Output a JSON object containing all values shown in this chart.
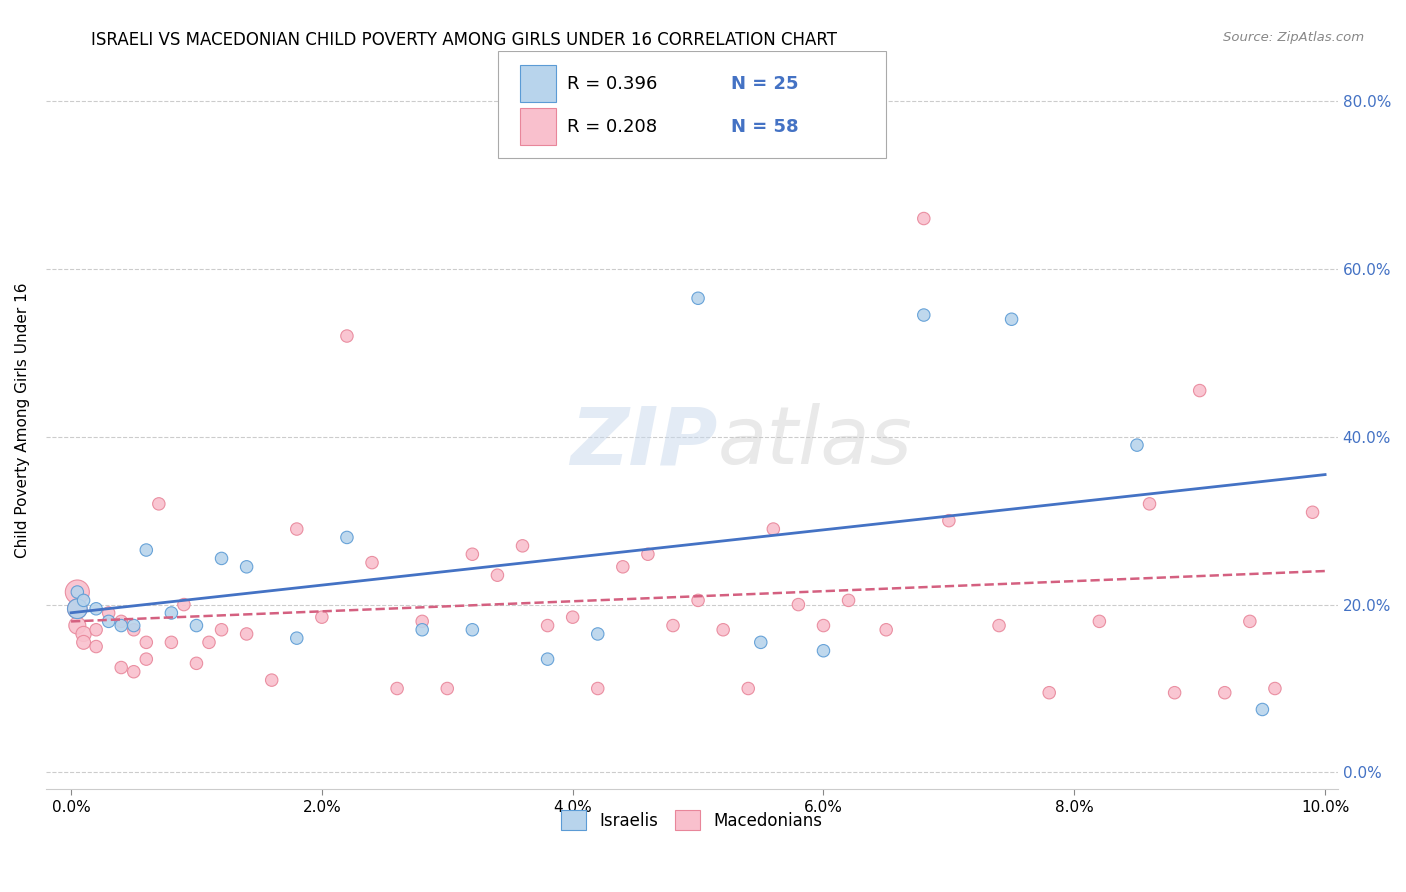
{
  "title": "ISRAELI VS MACEDONIAN CHILD POVERTY AMONG GIRLS UNDER 16 CORRELATION CHART",
  "source": "Source: ZipAtlas.com",
  "ylabel": "Child Poverty Among Girls Under 16",
  "xlim": [
    -0.002,
    0.101
  ],
  "ylim": [
    -0.02,
    0.86
  ],
  "xticks": [
    0.0,
    0.02,
    0.04,
    0.06,
    0.08,
    0.1
  ],
  "yticks": [
    0.0,
    0.2,
    0.4,
    0.6,
    0.8
  ],
  "israeli_fill": "#b8d4ec",
  "macedonian_fill": "#f9c0cd",
  "israeli_edge": "#5b9bd5",
  "macedonian_edge": "#e8869a",
  "israeli_line_color": "#4472c4",
  "macedonian_line_color": "#d46080",
  "legend_label_israeli": "Israelis",
  "legend_label_macedonian": "Macedonians",
  "R_israeli": 0.396,
  "N_israeli": 25,
  "R_macedonian": 0.208,
  "N_macedonian": 58,
  "watermark_zip": "ZIP",
  "watermark_atlas": "atlas",
  "israelis_x": [
    0.0005,
    0.0005,
    0.001,
    0.002,
    0.003,
    0.004,
    0.005,
    0.006,
    0.008,
    0.01,
    0.012,
    0.014,
    0.018,
    0.022,
    0.028,
    0.032,
    0.038,
    0.042,
    0.05,
    0.055,
    0.06,
    0.068,
    0.075,
    0.085,
    0.095
  ],
  "israelis_y": [
    0.215,
    0.195,
    0.205,
    0.195,
    0.18,
    0.175,
    0.175,
    0.265,
    0.19,
    0.175,
    0.255,
    0.245,
    0.16,
    0.28,
    0.17,
    0.17,
    0.135,
    0.165,
    0.565,
    0.155,
    0.145,
    0.545,
    0.54,
    0.39,
    0.075
  ],
  "macedonians_x": [
    0.0005,
    0.0005,
    0.0005,
    0.001,
    0.001,
    0.002,
    0.002,
    0.003,
    0.004,
    0.004,
    0.005,
    0.005,
    0.006,
    0.006,
    0.007,
    0.008,
    0.009,
    0.01,
    0.011,
    0.012,
    0.014,
    0.016,
    0.018,
    0.02,
    0.022,
    0.024,
    0.026,
    0.028,
    0.03,
    0.032,
    0.034,
    0.036,
    0.038,
    0.04,
    0.042,
    0.044,
    0.046,
    0.048,
    0.05,
    0.052,
    0.054,
    0.056,
    0.058,
    0.06,
    0.062,
    0.065,
    0.068,
    0.07,
    0.074,
    0.078,
    0.082,
    0.086,
    0.088,
    0.09,
    0.092,
    0.094,
    0.096,
    0.099
  ],
  "macedonians_y": [
    0.215,
    0.195,
    0.175,
    0.165,
    0.155,
    0.17,
    0.15,
    0.19,
    0.18,
    0.125,
    0.12,
    0.17,
    0.155,
    0.135,
    0.32,
    0.155,
    0.2,
    0.13,
    0.155,
    0.17,
    0.165,
    0.11,
    0.29,
    0.185,
    0.52,
    0.25,
    0.1,
    0.18,
    0.1,
    0.26,
    0.235,
    0.27,
    0.175,
    0.185,
    0.1,
    0.245,
    0.26,
    0.175,
    0.205,
    0.17,
    0.1,
    0.29,
    0.2,
    0.175,
    0.205,
    0.17,
    0.66,
    0.3,
    0.175,
    0.095,
    0.18,
    0.32,
    0.095,
    0.455,
    0.095,
    0.18,
    0.1,
    0.31
  ],
  "israelis_size": [
    80,
    200,
    80,
    80,
    80,
    80,
    80,
    80,
    80,
    80,
    80,
    80,
    80,
    80,
    80,
    80,
    80,
    80,
    80,
    80,
    80,
    80,
    80,
    80,
    80
  ],
  "macedonians_size": [
    300,
    200,
    150,
    120,
    100,
    80,
    80,
    80,
    80,
    80,
    80,
    80,
    80,
    80,
    80,
    80,
    80,
    80,
    80,
    80,
    80,
    80,
    80,
    80,
    80,
    80,
    80,
    80,
    80,
    80,
    80,
    80,
    80,
    80,
    80,
    80,
    80,
    80,
    80,
    80,
    80,
    80,
    80,
    80,
    80,
    80,
    80,
    80,
    80,
    80,
    80,
    80,
    80,
    80,
    80,
    80,
    80,
    80
  ]
}
